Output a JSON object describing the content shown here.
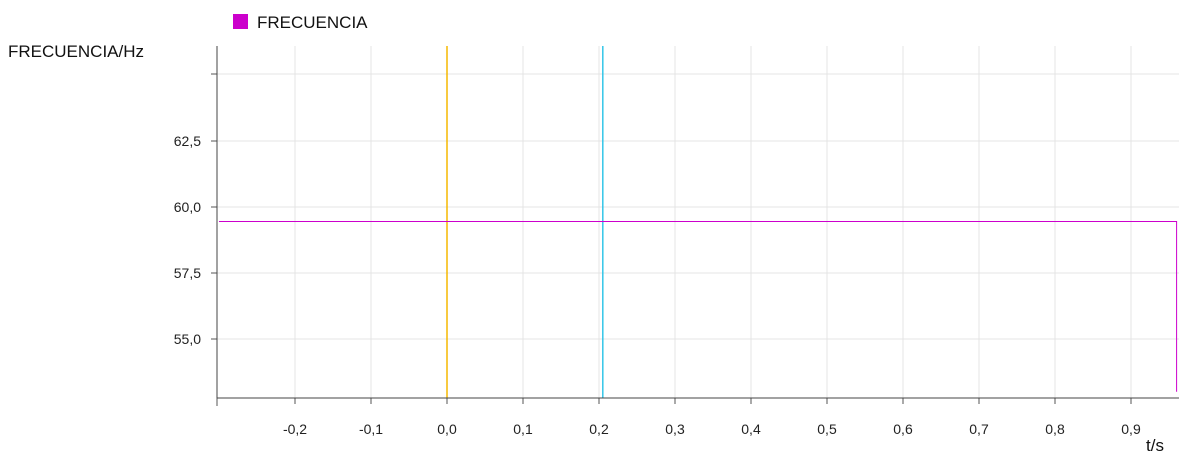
{
  "chart_data": {
    "type": "line",
    "title": "",
    "ylabel": "FRECUENCIA/Hz",
    "xlabel": "t/s",
    "xlim": [
      -0.3,
      0.96
    ],
    "ylim": [
      53.0,
      66.0
    ],
    "grid": true,
    "legend": {
      "placement": "top-left",
      "entries": [
        "FRECUENCIA"
      ]
    },
    "x_ticks": [
      {
        "value": -0.2,
        "label": "-0,2"
      },
      {
        "value": -0.1,
        "label": "-0,1"
      },
      {
        "value": 0.0,
        "label": "0,0"
      },
      {
        "value": 0.1,
        "label": "0,1"
      },
      {
        "value": 0.2,
        "label": "0,2"
      },
      {
        "value": 0.3,
        "label": "0,3"
      },
      {
        "value": 0.4,
        "label": "0,4"
      },
      {
        "value": 0.5,
        "label": "0,5"
      },
      {
        "value": 0.6,
        "label": "0,6"
      },
      {
        "value": 0.7,
        "label": "0,7"
      },
      {
        "value": 0.8,
        "label": "0,8"
      },
      {
        "value": 0.9,
        "label": "0,9"
      }
    ],
    "y_ticks": [
      {
        "value": 55.0,
        "label": "55,0"
      },
      {
        "value": 57.5,
        "label": "57,5"
      },
      {
        "value": 60.0,
        "label": "60,0"
      },
      {
        "value": 62.5,
        "label": "62,5"
      }
    ],
    "series": [
      {
        "name": "FRECUENCIA",
        "color": "#cc00cc",
        "x": [
          -0.3,
          0.96,
          0.96
        ],
        "y": [
          59.45,
          59.45,
          53.0
        ]
      }
    ],
    "markers": [
      {
        "x": 0.0,
        "color": "#f5b800"
      },
      {
        "x": 0.205,
        "color": "#33c5e8"
      }
    ]
  }
}
